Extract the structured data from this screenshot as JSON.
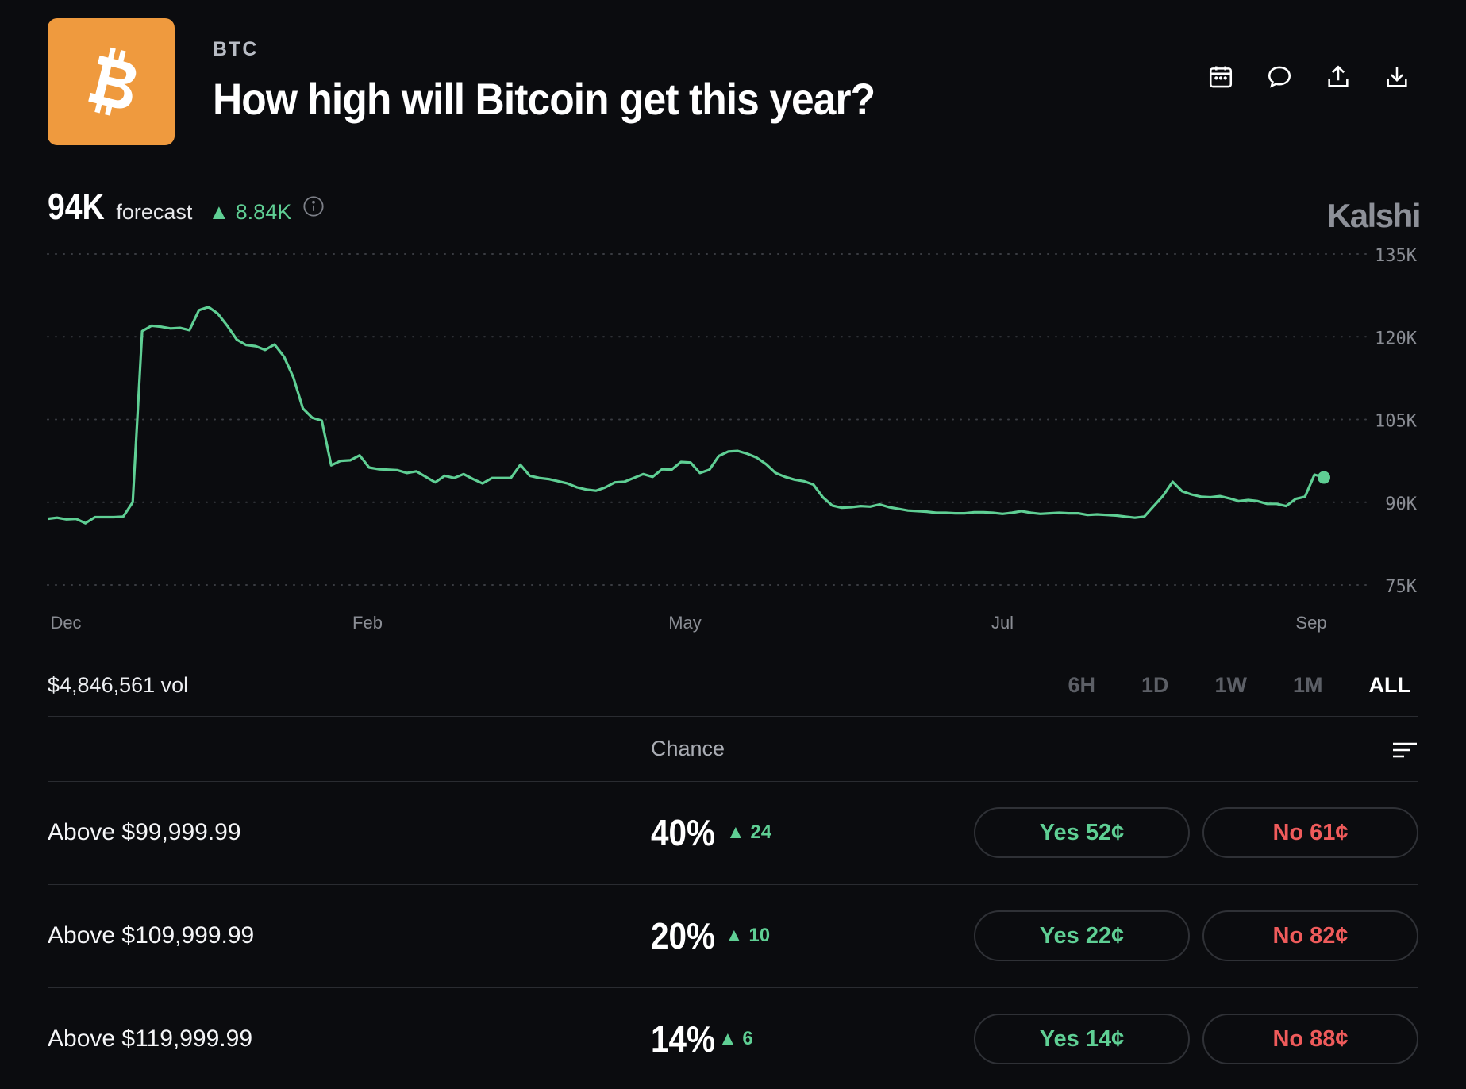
{
  "header": {
    "ticker": "BTC",
    "title": "How high will Bitcoin get this year?",
    "actions": [
      "calendar-icon",
      "comment-icon",
      "share-icon",
      "download-icon"
    ]
  },
  "forecast": {
    "value": "94K",
    "label": "forecast",
    "delta": "▲ 8.84K"
  },
  "brand": "Kalshi",
  "chart_data": {
    "type": "line",
    "x_ticks": [
      "Dec",
      "Feb",
      "May",
      "Jul",
      "Sep"
    ],
    "y_ticks": [
      "135K",
      "120K",
      "105K",
      "90K",
      "75K"
    ],
    "ylim": [
      75000,
      135000
    ],
    "grid": "dotted horizontal",
    "color": "#5fcf94",
    "series": [
      {
        "values": [
          87000,
          87200,
          86900,
          87000,
          86200,
          87300,
          87300,
          87300,
          87400,
          90000,
          121000,
          122000,
          121800,
          121500,
          121600,
          121200,
          124800,
          125400,
          124200,
          122000,
          119500,
          118500,
          118300,
          117600,
          118600,
          116400,
          112600,
          107000,
          105300,
          104800,
          96700,
          97500,
          97600,
          98500,
          96300,
          96000,
          95900,
          95800,
          95300,
          95600,
          94600,
          93600,
          94800,
          94400,
          95100,
          94200,
          93400,
          94400,
          94400,
          94400,
          96800,
          94800,
          94400,
          94200,
          93800,
          93400,
          92700,
          92300,
          92100,
          92700,
          93600,
          93700,
          94400,
          95100,
          94600,
          96000,
          95900,
          97300,
          97200,
          95300,
          95900,
          98400,
          99200,
          99300,
          98800,
          98100,
          96900,
          95300,
          94600,
          94100,
          93800,
          93200,
          90900,
          89400,
          89000,
          89100,
          89300,
          89200,
          89600,
          89100,
          88800,
          88500,
          88400,
          88300,
          88100,
          88100,
          88000,
          88000,
          88200,
          88200,
          88100,
          87900,
          88100,
          88400,
          88100,
          87900,
          88000,
          88100,
          88000,
          88000,
          87700,
          87800,
          87700,
          87600,
          87400,
          87200,
          87400,
          89300,
          91200,
          93700,
          92000,
          91400,
          91000,
          90900,
          91100,
          90700,
          90200,
          90400,
          90200,
          89700,
          89700,
          89300,
          90600,
          91000,
          95000,
          94500
        ]
      }
    ]
  },
  "volume": "$4,846,561 vol",
  "time_ranges": [
    "6H",
    "1D",
    "1W",
    "1M",
    "ALL"
  ],
  "active_range": "ALL",
  "table": {
    "header": "Chance",
    "rows": [
      {
        "label": "Above $99,999.99",
        "chance": "40%",
        "delta": "▲ 24",
        "yes": "Yes  52¢",
        "no": "No  61¢"
      },
      {
        "label": "Above $109,999.99",
        "chance": "20%",
        "delta": "▲ 10",
        "yes": "Yes  22¢",
        "no": "No  82¢"
      },
      {
        "label": "Above $119,999.99",
        "chance": "14%",
        "delta": "▲ 6",
        "yes": "Yes  14¢",
        "no": "No  88¢"
      }
    ]
  }
}
